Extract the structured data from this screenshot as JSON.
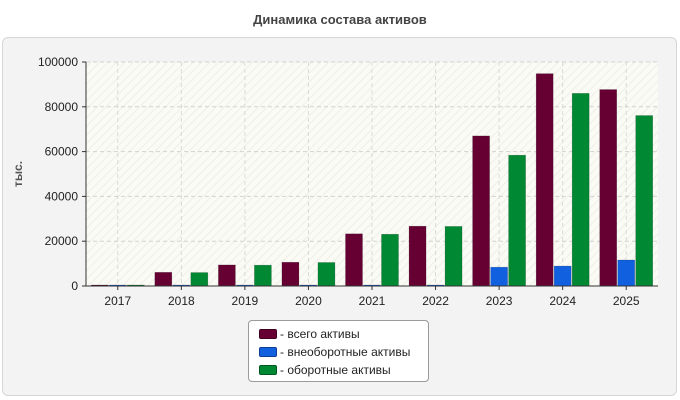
{
  "chart_data": {
    "type": "bar",
    "title": "Динамика состава активов",
    "ylabel": "тыс.",
    "xlabel": "",
    "categories": [
      "2017",
      "2018",
      "2019",
      "2020",
      "2021",
      "2022",
      "2023",
      "2024",
      "2025"
    ],
    "ylim": [
      0,
      100000
    ],
    "yticks": [
      0,
      20000,
      40000,
      60000,
      80000,
      100000
    ],
    "grid": true,
    "legend_position": "bottom-center",
    "series": [
      {
        "name": "- всего активы",
        "color": "#660033",
        "values": [
          300,
          6100,
          9400,
          10600,
          23300,
          26700,
          67000,
          94800,
          87700
        ]
      },
      {
        "name": "- внеоборотные активы",
        "color": "#1060e0",
        "values": [
          200,
          300,
          200,
          300,
          300,
          300,
          8400,
          8900,
          11600
        ]
      },
      {
        "name": "- оборотные активы",
        "color": "#008833",
        "values": [
          200,
          6000,
          9300,
          10500,
          23100,
          26600,
          58400,
          86000,
          76100
        ]
      }
    ]
  }
}
